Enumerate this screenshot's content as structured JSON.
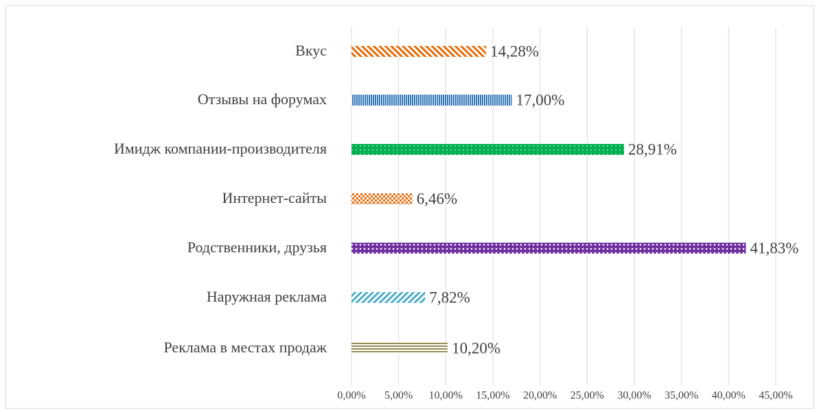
{
  "chart_data": {
    "type": "bar",
    "orientation": "horizontal",
    "categories": [
      "Вкус",
      "Отзывы на форумах",
      "Имидж компании-производителя",
      "Интернет-сайты",
      "Родственники, друзья",
      "Наружная реклама",
      "Реклама в местах продаж"
    ],
    "values": [
      14.28,
      17.0,
      28.91,
      6.46,
      41.83,
      7.82,
      10.2
    ],
    "value_labels": [
      "14,28%",
      "17,00%",
      "28,91%",
      "6,46%",
      "41,83%",
      "7,82%",
      "10,20%"
    ],
    "colors": [
      "#e46c0a",
      "#2e75b6",
      "#00b050",
      "#e46c0a",
      "#7030a0",
      "#4bacc6",
      "#948a54"
    ],
    "xlim": [
      0,
      45
    ],
    "xticks": [
      {
        "value": 0,
        "label": "0,00%"
      },
      {
        "value": 5,
        "label": "5,00%"
      },
      {
        "value": 10,
        "label": "10,00%"
      },
      {
        "value": 15,
        "label": "15,00%"
      },
      {
        "value": 20,
        "label": "20,00%"
      },
      {
        "value": 25,
        "label": "25,00%"
      },
      {
        "value": 30,
        "label": "30,00%"
      },
      {
        "value": 35,
        "label": "35,00%"
      },
      {
        "value": 40,
        "label": "40,00%"
      },
      {
        "value": 45,
        "label": "45,00%"
      }
    ],
    "grid": true
  }
}
